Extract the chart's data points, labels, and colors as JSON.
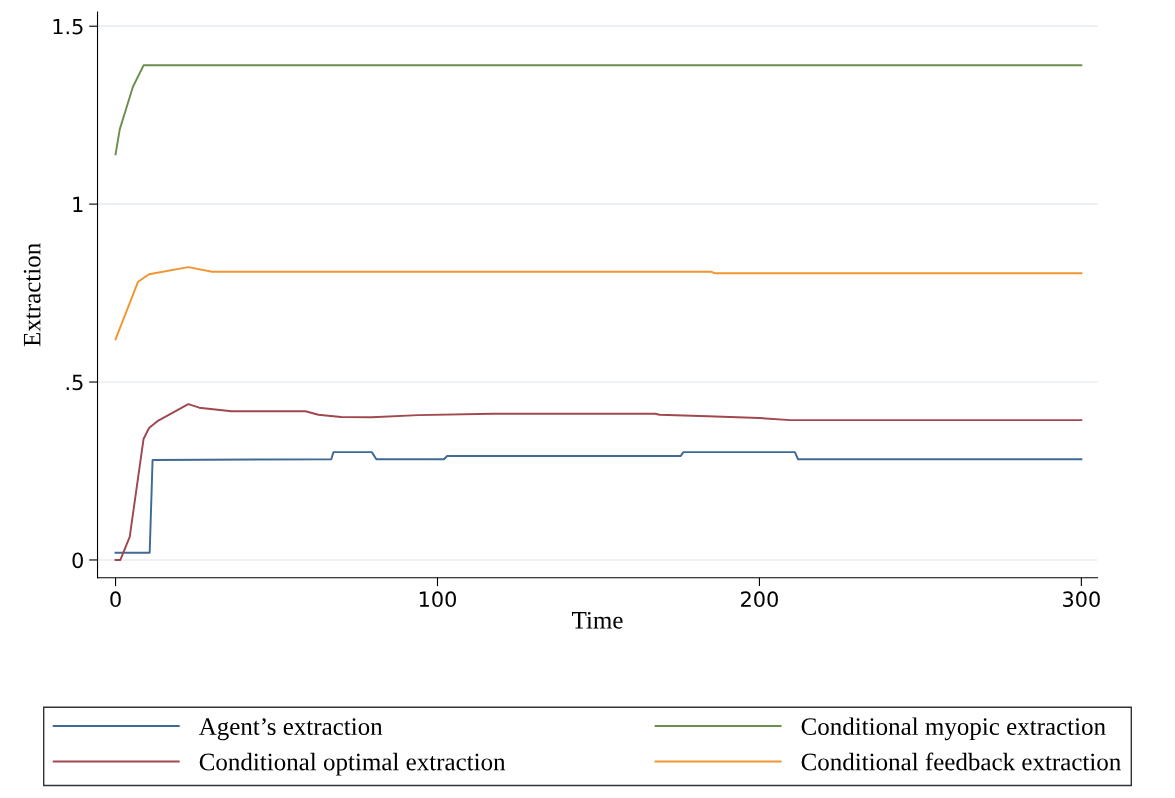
{
  "chart_data": {
    "type": "line",
    "xlabel": "Time",
    "ylabel": "Extraction",
    "xlim": [
      -5.6,
      305
    ],
    "xticks": [
      0,
      100,
      200,
      300
    ],
    "ylim": [
      -0.05,
      1.54
    ],
    "yticks": [
      0,
      {
        "value": 0.5,
        "label": ".5"
      },
      1,
      1.5
    ],
    "grid": "y",
    "legend": "bottom",
    "marker": "none",
    "line_style": "solid",
    "series": [
      {
        "name": "Agent’s extraction",
        "color": "#3e6a94",
        "x": [
          0,
          10.6,
          11.5,
          67,
          67.7,
          79.6,
          81,
          102,
          103,
          175.5,
          176.4,
          211,
          212,
          300
        ],
        "values": [
          0.02,
          0.02,
          0.281,
          0.283,
          0.303,
          0.303,
          0.283,
          0.283,
          0.292,
          0.292,
          0.303,
          0.303,
          0.283,
          0.283
        ]
      },
      {
        "name": "Conditional optimal extraction",
        "color": "#a0474f",
        "x": [
          0,
          1.5,
          4.4,
          8.7,
          10.4,
          13,
          22.6,
          26,
          36,
          59,
          63,
          70,
          79.6,
          94,
          117,
          167.6,
          169,
          184,
          200,
          209.6,
          300
        ],
        "values": [
          0,
          0,
          0.065,
          0.34,
          0.371,
          0.39,
          0.438,
          0.428,
          0.418,
          0.418,
          0.408,
          0.402,
          0.401,
          0.407,
          0.411,
          0.411,
          0.408,
          0.404,
          0.399,
          0.393,
          0.393
        ]
      },
      {
        "name": "Conditional myopic extraction",
        "color": "#6d8f4e",
        "x": [
          0,
          1.3,
          5.4,
          8.7,
          300
        ],
        "values": [
          1.14,
          1.21,
          1.33,
          1.39,
          1.39
        ]
      },
      {
        "name": "Conditional feedback extraction",
        "color": "#f0952f",
        "x": [
          0,
          7,
          10.4,
          22.6,
          30,
          185,
          186,
          300
        ],
        "values": [
          0.62,
          0.782,
          0.803,
          0.823,
          0.81,
          0.81,
          0.806,
          0.806
        ]
      }
    ]
  }
}
